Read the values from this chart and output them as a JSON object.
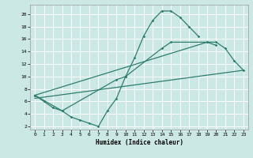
{
  "title": "",
  "xlabel": "Humidex (Indice chaleur)",
  "xlim": [
    -0.5,
    23.5
  ],
  "ylim": [
    1.5,
    21.5
  ],
  "yticks": [
    2,
    4,
    6,
    8,
    10,
    12,
    14,
    16,
    18,
    20
  ],
  "xticks": [
    0,
    1,
    2,
    3,
    4,
    5,
    6,
    7,
    8,
    9,
    10,
    11,
    12,
    13,
    14,
    15,
    16,
    17,
    18,
    19,
    20,
    21,
    22,
    23
  ],
  "line_color": "#2e7d6e",
  "bg_color": "#cce8e4",
  "grid_color": "#ffffff",
  "line1_x": [
    0,
    1,
    2,
    3,
    4,
    5,
    6,
    7,
    8,
    9,
    10,
    11,
    12,
    13,
    14,
    15,
    16,
    17,
    18
  ],
  "line1_y": [
    7,
    6,
    5,
    4.5,
    3.5,
    3,
    2.5,
    2,
    4.5,
    6.5,
    10,
    13,
    16.5,
    19,
    20.5,
    20.5,
    19.5,
    18,
    16.5
  ],
  "line2_x": [
    0,
    3,
    9,
    10,
    14,
    15,
    19,
    20
  ],
  "line2_y": [
    7,
    4.5,
    9.5,
    10,
    14.5,
    15.5,
    15.5,
    15.0
  ],
  "line3_x": [
    0,
    23
  ],
  "line3_y": [
    6.5,
    11
  ],
  "line4_x": [
    0,
    19,
    20,
    21,
    22,
    23
  ],
  "line4_y": [
    7,
    15.5,
    15.5,
    14.5,
    12.5,
    11
  ]
}
